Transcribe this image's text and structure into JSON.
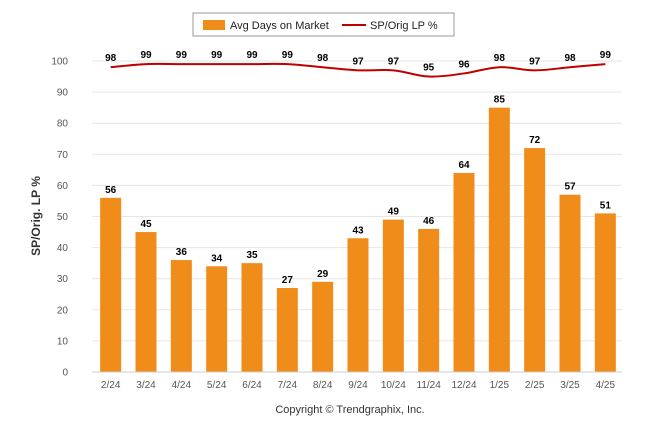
{
  "chart_data": {
    "type": "bar",
    "categories": [
      "2/24",
      "3/24",
      "4/24",
      "5/24",
      "6/24",
      "7/24",
      "8/24",
      "9/24",
      "10/24",
      "11/24",
      "12/24",
      "1/25",
      "2/25",
      "3/25",
      "4/25"
    ],
    "series": [
      {
        "name": "Avg Days on Market",
        "type": "bar",
        "color": "#F08C19",
        "values": [
          56,
          45,
          36,
          34,
          35,
          27,
          29,
          43,
          49,
          46,
          64,
          85,
          72,
          57,
          51
        ]
      },
      {
        "name": "SP/Orig LP %",
        "type": "line",
        "color": "#C00000",
        "values": [
          98,
          99,
          99,
          99,
          99,
          99,
          98,
          97,
          97,
          95,
          96,
          98,
          97,
          98,
          99
        ]
      }
    ],
    "ylabel": "SP/Orig. LP %",
    "yticks": [
      0,
      10,
      20,
      30,
      40,
      50,
      60,
      70,
      80,
      90,
      100
    ],
    "ylim": [
      0,
      100
    ],
    "grid": true,
    "legend": "top-center"
  },
  "legend": {
    "bar_label": "Avg Days on Market",
    "line_label": "SP/Orig LP %"
  },
  "footer": {
    "text": "Copyright © Trendgraphix, Inc."
  }
}
